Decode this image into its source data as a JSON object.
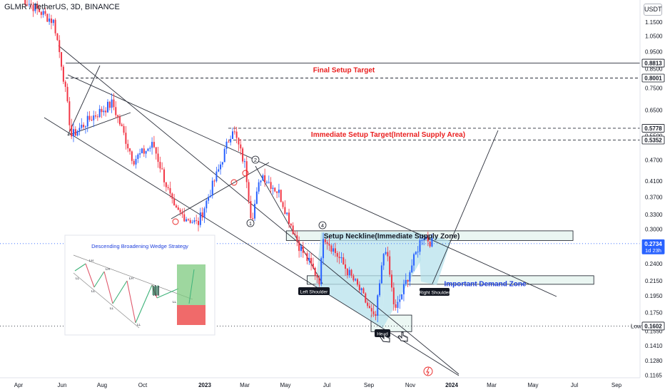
{
  "header": {
    "symbol_title": "GLMR / TetherUS, 3D, BINANCE",
    "quote_unit": "USDT"
  },
  "colors": {
    "up_candle": "#2962ff",
    "down_candle": "#f23645",
    "annotation_red": "#e91e1e",
    "annotation_blue": "#1e3fdc",
    "neckline_zone_fill": "#d8efe8",
    "pattern_fill": "#b7e1ec",
    "line_dark": "#2a2e39"
  },
  "chart_data": {
    "type": "candlestick",
    "title": "",
    "xlabel": "",
    "ylabel": "",
    "price_scale": "log",
    "ylim": [
      0.1165,
      1.5
    ],
    "x_tick_labels": [
      "Apr",
      "Jun",
      "Aug",
      "Oct",
      "2023",
      "Mar",
      "May",
      "Jul",
      "Sep",
      "Nov",
      "2024",
      "Mar",
      "May",
      "Jul",
      "Sep"
    ],
    "y_tick_labels": [
      "1.1500",
      "1.0500",
      "0.9500",
      "0.8500",
      "0.7500",
      "0.6500",
      "0.5500",
      "0.4700",
      "0.4100",
      "0.3700",
      "0.3300",
      "0.3000",
      "0.2400",
      "0.2150",
      "0.1950",
      "0.1750",
      "0.1550",
      "0.1410",
      "0.1280",
      "0.1165"
    ],
    "price_key_points": [
      {
        "date": "2022-04",
        "price": 1.35
      },
      {
        "date": "2022-05-20",
        "price": 1.15
      },
      {
        "date": "2022-06-01",
        "price": 0.86
      },
      {
        "date": "2022-06-15",
        "price": 0.55
      },
      {
        "date": "2022-07-15",
        "price": 0.62
      },
      {
        "date": "2022-08-15",
        "price": 0.68
      },
      {
        "date": "2022-09-15",
        "price": 0.47
      },
      {
        "date": "2022-10-15",
        "price": 0.52
      },
      {
        "date": "2022-11-15",
        "price": 0.34
      },
      {
        "date": "2022-12-20",
        "price": 0.31
      },
      {
        "date": "2023-01-20",
        "price": 0.44
      },
      {
        "date": "2023-02-10",
        "price": 0.58
      },
      {
        "date": "2023-03-01",
        "price": 0.45
      },
      {
        "date": "2023-03-10",
        "price": 0.32
      },
      {
        "date": "2023-03-25",
        "price": 0.43
      },
      {
        "date": "2023-04-20",
        "price": 0.38
      },
      {
        "date": "2023-05-20",
        "price": 0.27
      },
      {
        "date": "2023-06-20",
        "price": 0.215
      },
      {
        "date": "2023-06-25",
        "price": 0.29
      },
      {
        "date": "2023-07-15",
        "price": 0.255
      },
      {
        "date": "2023-08-20",
        "price": 0.2
      },
      {
        "date": "2023-09-10",
        "price": 0.165
      },
      {
        "date": "2023-09-25",
        "price": 0.275
      },
      {
        "date": "2023-10-10",
        "price": 0.175
      },
      {
        "date": "2023-10-25",
        "price": 0.21
      },
      {
        "date": "2023-11-20",
        "price": 0.29
      },
      {
        "date": "2023-12-05",
        "price": 0.2734
      }
    ],
    "price_labels": [
      {
        "text": "0.8813",
        "price": 0.8813,
        "style": "boxed"
      },
      {
        "text": "0.8001",
        "price": 0.8001,
        "style": "boxed"
      },
      {
        "text": "0.5778",
        "price": 0.5778,
        "style": "boxed"
      },
      {
        "text": "0.5352",
        "price": 0.5352,
        "style": "boxed"
      },
      {
        "text": "0.2734",
        "price": 0.2734,
        "style": "current",
        "sub": "1d 23h"
      },
      {
        "text": "0.1602",
        "price": 0.1602,
        "style": "boxed"
      }
    ],
    "horizontal_levels": [
      {
        "label": "Final Setup Target",
        "price": 0.8813,
        "style": "solid"
      },
      {
        "label": "",
        "price": 0.8001,
        "style": "dashed"
      },
      {
        "label": "Immediate Setup Target(Internal Supply Area)",
        "price": 0.5778,
        "style": "dashed"
      },
      {
        "label": "",
        "price": 0.5352,
        "style": "dashed"
      },
      {
        "label": "Low",
        "price": 0.1602,
        "style": "dotted"
      },
      {
        "label": "",
        "price": 0.2734,
        "style": "dotted"
      }
    ],
    "zones": [
      {
        "label": "Setup Neckline(Immediate Supply Zone)",
        "from": "2023-05",
        "to": "2024-07",
        "price_low": 0.279,
        "price_high": 0.297
      },
      {
        "label": "Important Demand Zone",
        "from": "2023-06",
        "to": "2024-08",
        "price_low": 0.21,
        "price_high": 0.222
      }
    ],
    "pattern_labels": [
      "Left Shoulder",
      "Head",
      "Right Shoulder"
    ],
    "wave_labels": [
      "1",
      "2",
      "4"
    ],
    "inset": {
      "title": "Descending Broadening Wedge Strategy",
      "labels": [
        "LH",
        "LH",
        "LH",
        "LL",
        "LL",
        "LL",
        "LL",
        "LL"
      ]
    }
  }
}
